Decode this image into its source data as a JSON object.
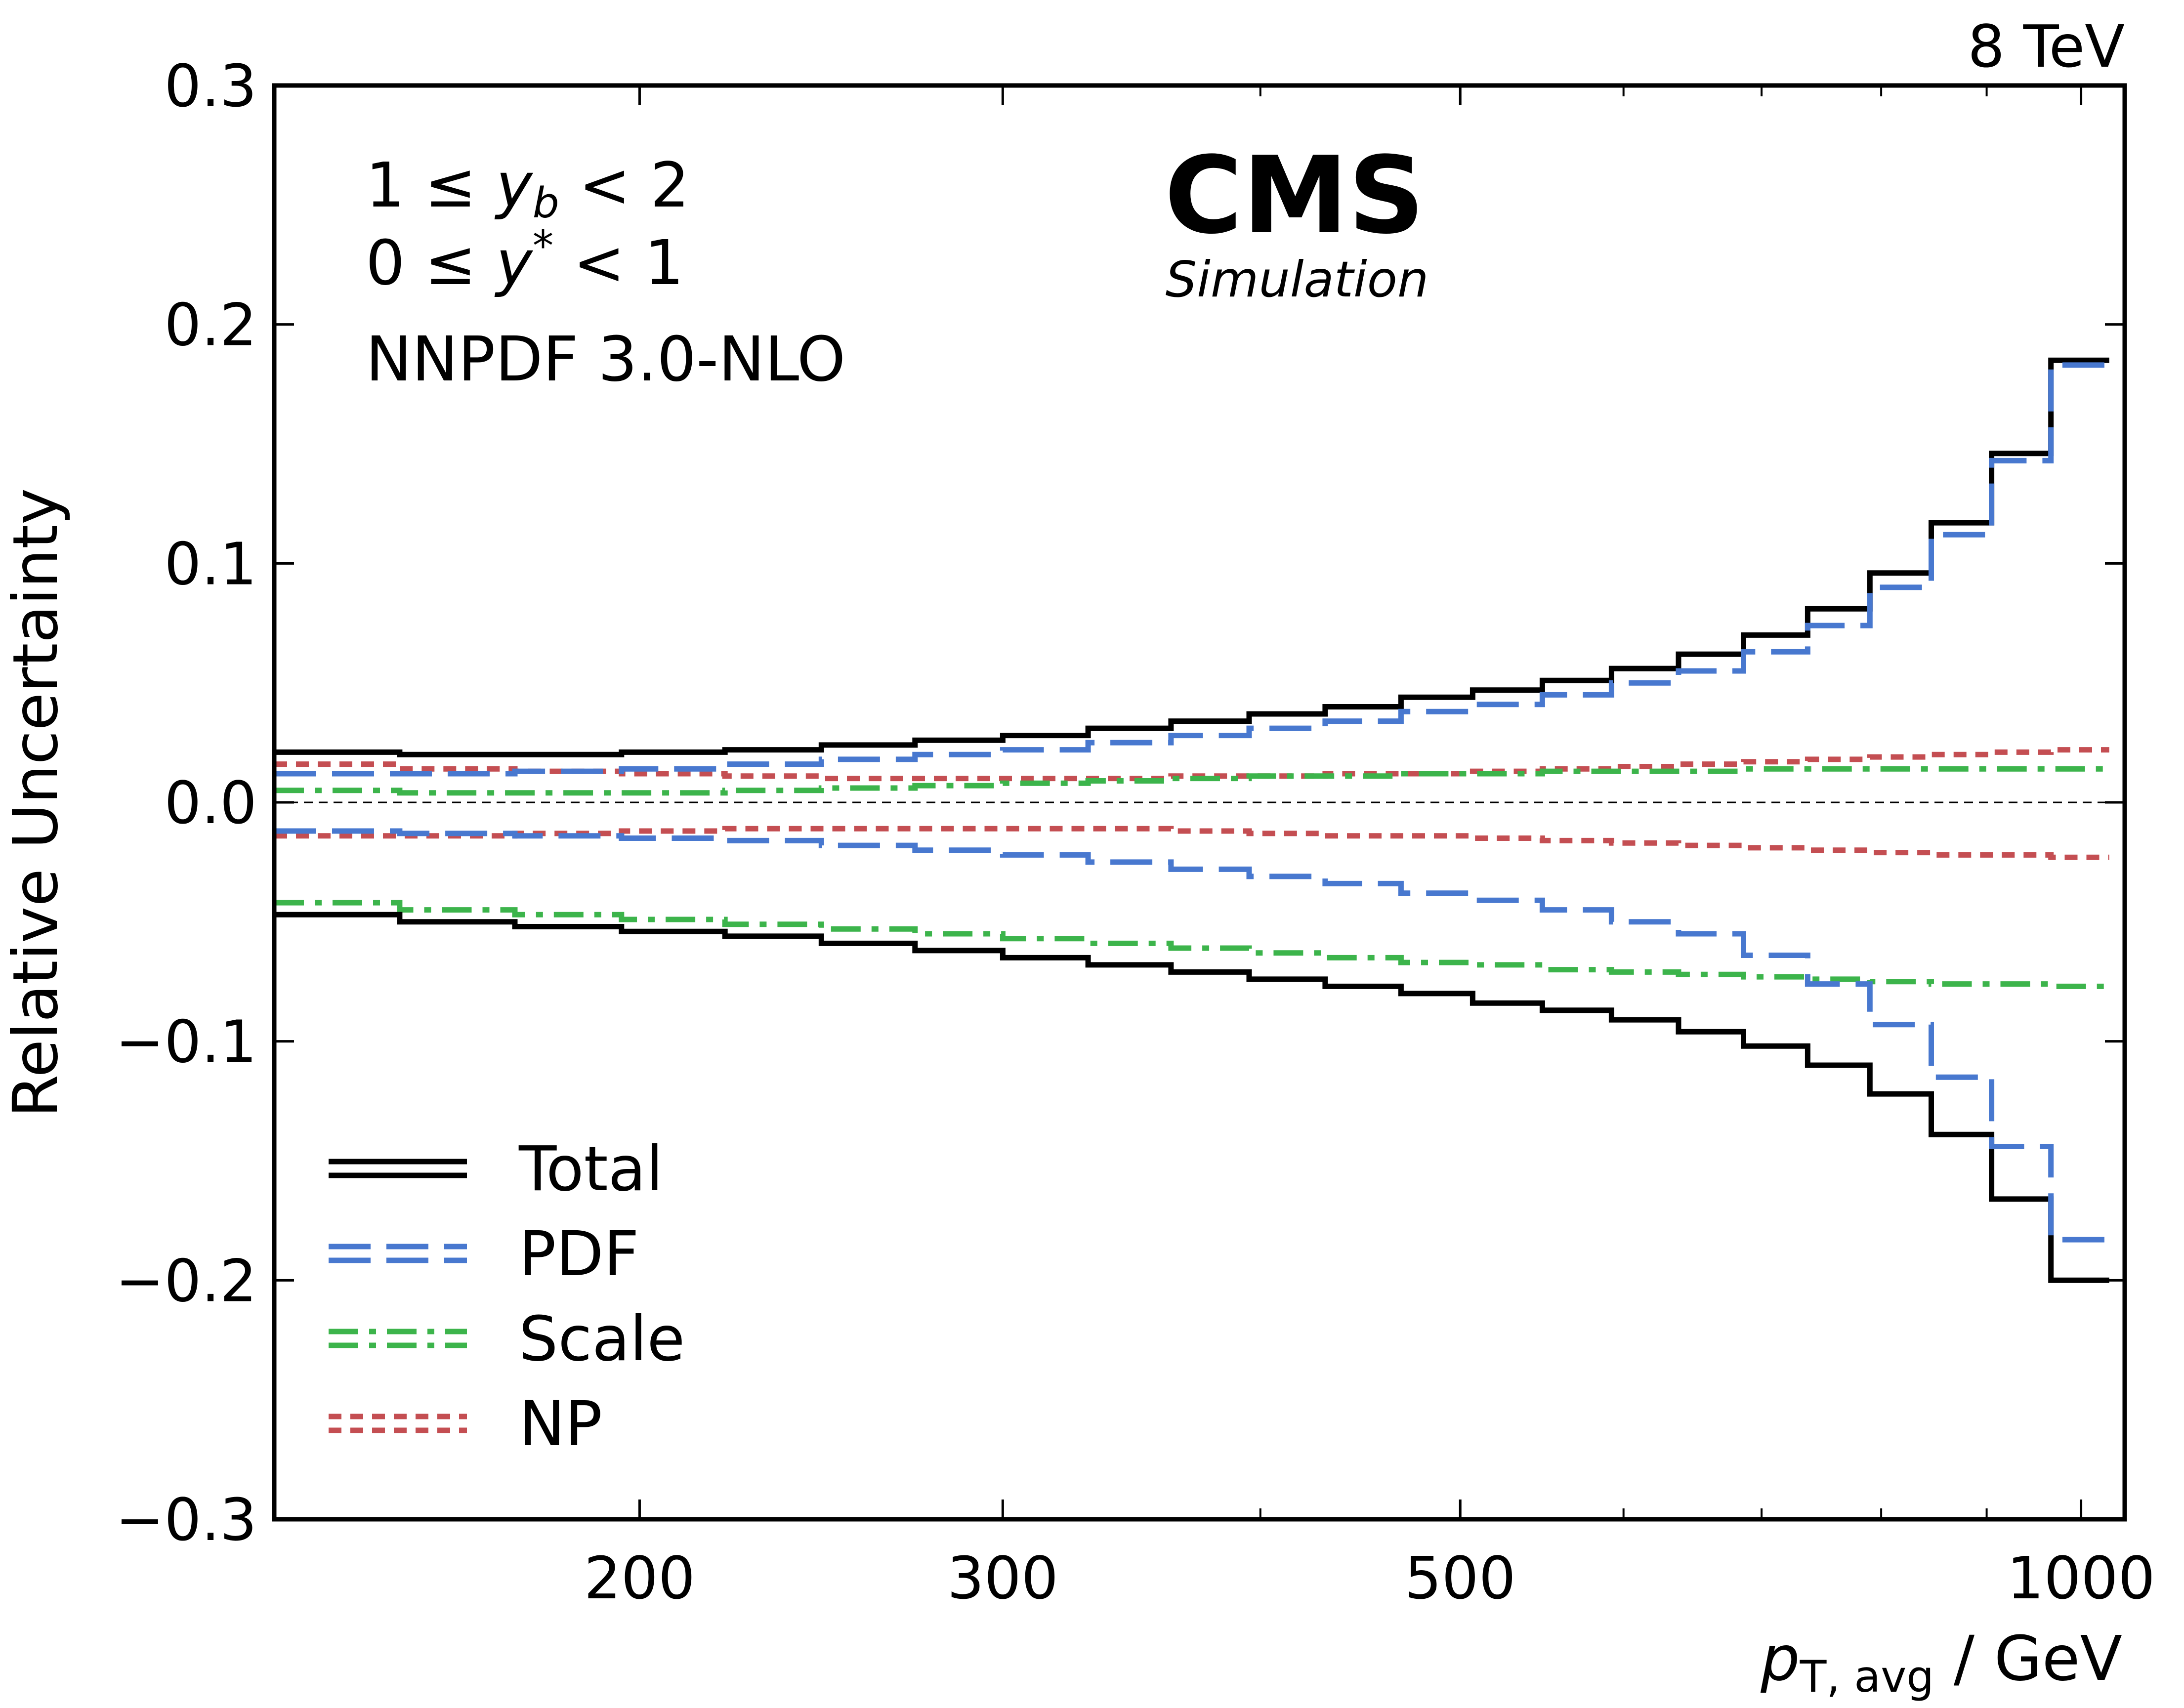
{
  "chart_data": {
    "type": "line",
    "step": true,
    "xscale": "log",
    "xlim": [
      133,
      1050
    ],
    "ylim": [
      -0.3,
      0.3
    ],
    "xlabel": {
      "main": "p",
      "sub": "T, avg",
      "unit": " / GeV"
    },
    "ylabel": "Relative Uncertainty",
    "energy_label": "8 TeV",
    "experiment": "CMS",
    "experiment_sub": "Simulation",
    "annotations": {
      "yb_line": {
        "pre": "1 ≤ ",
        "var": "y",
        "sub": "b",
        "post": " < 2"
      },
      "ystar_line": {
        "pre": "0 ≤ ",
        "var": "y",
        "sup": "*",
        "post": " < 1"
      },
      "pdf_set": "NNPDF 3.0-NLO"
    },
    "x_ticks": [
      200,
      300,
      500,
      1000
    ],
    "x_minor_ticks": [
      400,
      600,
      700,
      800,
      900
    ],
    "y_ticks": [
      -0.3,
      -0.2,
      -0.1,
      0.0,
      0.1,
      0.2,
      0.3
    ],
    "y_tick_labels": [
      "−0.3",
      "−0.2",
      "−0.1",
      "0.0",
      "0.1",
      "0.2",
      "0.3"
    ],
    "x_tick_labels": [
      "200",
      "300",
      "500",
      "1000"
    ],
    "bin_edges": [
      133,
      153,
      174,
      196,
      220,
      245,
      272,
      300,
      330,
      362,
      395,
      430,
      468,
      507,
      548,
      592,
      638,
      686,
      737,
      790,
      846,
      905,
      967,
      1032
    ],
    "series": [
      {
        "name": "Total",
        "color": "#000000",
        "style": "solid",
        "up": [
          0.021,
          0.02,
          0.02,
          0.021,
          0.022,
          0.024,
          0.026,
          0.028,
          0.031,
          0.034,
          0.037,
          0.04,
          0.044,
          0.047,
          0.051,
          0.056,
          0.062,
          0.07,
          0.081,
          0.096,
          0.117,
          0.146,
          0.185
        ],
        "down": [
          -0.047,
          -0.05,
          -0.052,
          -0.054,
          -0.056,
          -0.059,
          -0.062,
          -0.065,
          -0.068,
          -0.071,
          -0.074,
          -0.077,
          -0.08,
          -0.084,
          -0.087,
          -0.091,
          -0.096,
          -0.102,
          -0.11,
          -0.122,
          -0.139,
          -0.166,
          -0.2
        ]
      },
      {
        "name": "PDF",
        "color": "#4878cf",
        "style": "dashed",
        "up": [
          0.012,
          0.012,
          0.013,
          0.014,
          0.016,
          0.018,
          0.02,
          0.022,
          0.025,
          0.028,
          0.031,
          0.034,
          0.038,
          0.041,
          0.045,
          0.05,
          0.055,
          0.063,
          0.074,
          0.09,
          0.112,
          0.143,
          0.183
        ],
        "down": [
          -0.012,
          -0.013,
          -0.014,
          -0.015,
          -0.016,
          -0.018,
          -0.02,
          -0.022,
          -0.025,
          -0.028,
          -0.031,
          -0.034,
          -0.038,
          -0.041,
          -0.045,
          -0.05,
          -0.055,
          -0.064,
          -0.076,
          -0.093,
          -0.115,
          -0.144,
          -0.183
        ]
      },
      {
        "name": "Scale",
        "color": "#3cb44b",
        "style": "dashdot",
        "up": [
          0.005,
          0.004,
          0.004,
          0.004,
          0.005,
          0.006,
          0.007,
          0.008,
          0.009,
          0.01,
          0.011,
          0.011,
          0.012,
          0.012,
          0.013,
          0.013,
          0.013,
          0.014,
          0.014,
          0.014,
          0.014,
          0.014,
          0.014
        ],
        "down": [
          -0.042,
          -0.045,
          -0.047,
          -0.049,
          -0.051,
          -0.053,
          -0.055,
          -0.057,
          -0.059,
          -0.061,
          -0.063,
          -0.065,
          -0.067,
          -0.068,
          -0.07,
          -0.071,
          -0.072,
          -0.073,
          -0.074,
          -0.075,
          -0.076,
          -0.076,
          -0.077
        ]
      },
      {
        "name": "NP",
        "color": "#c44e52",
        "style": "dotted",
        "up": [
          0.016,
          0.014,
          0.013,
          0.012,
          0.011,
          0.01,
          0.01,
          0.01,
          0.01,
          0.011,
          0.011,
          0.012,
          0.012,
          0.013,
          0.014,
          0.015,
          0.016,
          0.017,
          0.018,
          0.019,
          0.02,
          0.021,
          0.022
        ],
        "down": [
          -0.014,
          -0.014,
          -0.013,
          -0.012,
          -0.011,
          -0.011,
          -0.011,
          -0.011,
          -0.011,
          -0.012,
          -0.013,
          -0.014,
          -0.014,
          -0.015,
          -0.016,
          -0.017,
          -0.018,
          -0.019,
          -0.02,
          -0.021,
          -0.022,
          -0.022,
          -0.023
        ]
      }
    ],
    "legend_position": "lower-left"
  }
}
